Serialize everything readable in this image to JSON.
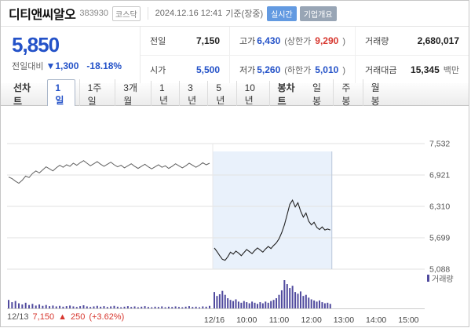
{
  "header": {
    "title": "디티앤씨알오",
    "code": "383930",
    "market_badge": "코스닥",
    "datetime": "2024.12.16 12:41",
    "datetime_suffix": "기준(장중)",
    "realtime_badge": "실시간",
    "overview_badge": "기업개요"
  },
  "quote": {
    "price": "5,850",
    "change_label": "전일대비",
    "change_arrow": "▼",
    "change_value": "1,300",
    "change_percent": "-18.18%",
    "table": {
      "prev_label": "전일",
      "prev_value": "7,150",
      "high_label": "고가",
      "high_value": "6,430",
      "upper_limit_prefix": "(상한가",
      "upper_limit_value": "9,290",
      "lower_limit_prefix": "(하한가",
      "lower_limit_value": "5,010",
      "paren_close": ")",
      "volume_label": "거래량",
      "volume_value": "2,680,017",
      "open_label": "시가",
      "open_value": "5,500",
      "low_label": "저가",
      "low_value": "5,260",
      "amount_label": "거래대금",
      "amount_value": "15,345",
      "amount_unit": "백만"
    }
  },
  "tabs": {
    "line_chart_label": "선차트",
    "periods": [
      "1일",
      "1주일",
      "3개월",
      "1년",
      "3년",
      "5년",
      "10년"
    ],
    "selected_period": "1일",
    "candle_chart_label": "봉차트",
    "candle_periods": [
      "일봉",
      "주봉",
      "월봉"
    ]
  },
  "chart_data": {
    "type": "line",
    "title": "디티앤씨알오 1일 선차트",
    "ylim": [
      5088,
      7532
    ],
    "y_ticks": [
      7532,
      6921,
      6310,
      5699,
      5088
    ],
    "y_tick_labels": [
      "7,532",
      "6,921",
      "6,310",
      "5,699",
      "5,088"
    ],
    "day2_label": "12/16",
    "x_hour_labels": [
      "10:00",
      "11:00",
      "12:00",
      "13:00",
      "14:00",
      "15:00"
    ],
    "volume_legend": "거래량",
    "prev_day_summary": {
      "date": "12/13",
      "close": "7,150",
      "arrow": "▲",
      "change": "250",
      "percent": "(+3.62%)"
    },
    "series": [
      {
        "name": "12/13",
        "values": [
          6880,
          6850,
          6800,
          6760,
          6820,
          6900,
          6870,
          6950,
          7000,
          6960,
          7020,
          7080,
          7040,
          7000,
          7060,
          7110,
          7070,
          7120,
          7090,
          7150,
          7110,
          7160,
          7200,
          7150,
          7100,
          7140,
          7180,
          7130,
          7090,
          7130,
          7170,
          7120,
          7080,
          7110,
          7060,
          7100,
          7140,
          7090,
          7050,
          7090,
          7130,
          7080,
          7040,
          7080,
          7120,
          7070,
          7100,
          7050,
          7090,
          7140,
          7100,
          7060,
          7100,
          7150,
          7110,
          7070,
          7110,
          7160,
          7120,
          7150
        ],
        "volumes": [
          30,
          22,
          26,
          18,
          14,
          20,
          12,
          16,
          10,
          14,
          9,
          12,
          8,
          10,
          7,
          9,
          6,
          8,
          10,
          7,
          5,
          8,
          11,
          7,
          5,
          7,
          9,
          6,
          8,
          5,
          7,
          9,
          6,
          4,
          6,
          8,
          5,
          7,
          4,
          6,
          8,
          5,
          4,
          6,
          5,
          7,
          4,
          6,
          5,
          7,
          5,
          4,
          6,
          8,
          5,
          6,
          4,
          7,
          6,
          9
        ]
      },
      {
        "name": "12/16",
        "values": [
          5500,
          5430,
          5350,
          5280,
          5260,
          5330,
          5420,
          5380,
          5440,
          5400,
          5350,
          5410,
          5470,
          5430,
          5390,
          5450,
          5500,
          5460,
          5420,
          5480,
          5530,
          5490,
          5550,
          5600,
          5680,
          5800,
          5950,
          6150,
          6350,
          6430,
          6300,
          6380,
          6220,
          6100,
          6180,
          6020,
          5950,
          6000,
          5900,
          5860,
          5910,
          5850,
          5870,
          5850
        ],
        "volumes": [
          58,
          44,
          50,
          62,
          48,
          36,
          30,
          26,
          32,
          24,
          20,
          26,
          22,
          18,
          24,
          20,
          16,
          22,
          18,
          24,
          20,
          26,
          30,
          36,
          48,
          64,
          100,
          86,
          72,
          80,
          58,
          52,
          60,
          44,
          48,
          38,
          32,
          28,
          24,
          28,
          22,
          18,
          20,
          16
        ]
      }
    ]
  },
  "colors": {
    "down_blue": "#2452c8",
    "up_red": "#d7372f",
    "volume": "#504a9e",
    "highlight": "#dbe7f8",
    "grid": "#e2e2e2",
    "line_day1": "#606060",
    "line_day2": "#222222"
  }
}
